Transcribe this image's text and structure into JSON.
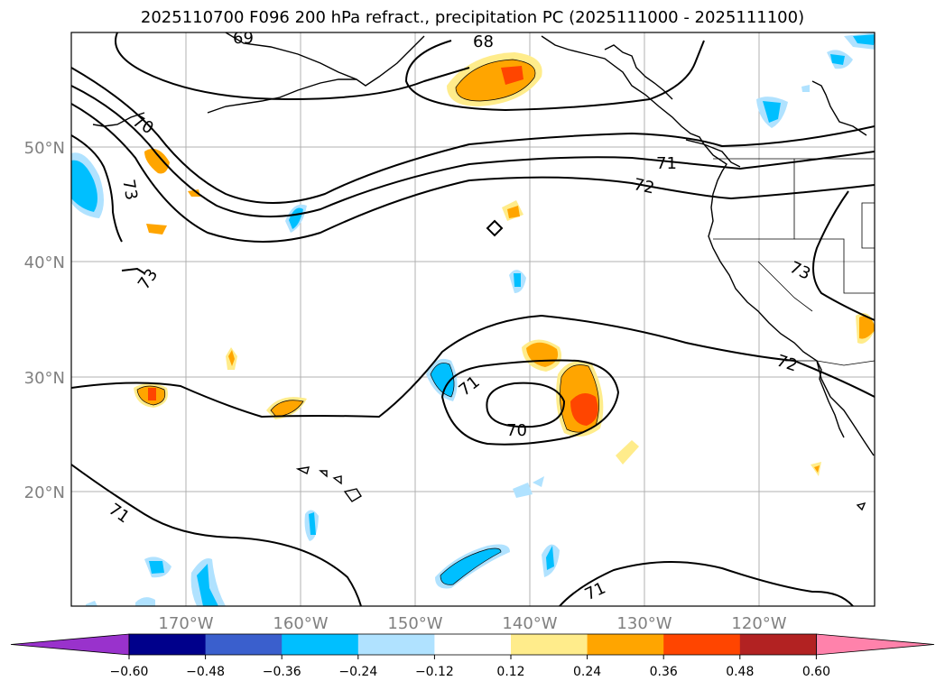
{
  "title": "2025110700 F096 200 hPa refract., precipitation PC (2025111000 - 2025111100)",
  "map": {
    "lon_range": [
      -180,
      -110
    ],
    "lat_range": [
      10,
      60
    ],
    "lon_labels": [
      "170°W",
      "160°W",
      "150°W",
      "140°W",
      "130°W",
      "120°W"
    ],
    "lat_labels": [
      "50°N",
      "40°N",
      "30°N",
      "20°N"
    ],
    "contour_labels": [
      "69",
      "68",
      "70",
      "71",
      "72",
      "73",
      "73",
      "71",
      "71",
      "70",
      "72",
      "73",
      "71",
      "71"
    ]
  },
  "colorbar": {
    "tick_labels": [
      "−0.60",
      "−0.48",
      "−0.36",
      "−0.24",
      "−0.12",
      "0.12",
      "0.24",
      "0.36",
      "0.48",
      "0.60"
    ],
    "colors": [
      "#9932cc",
      "#00008b",
      "#3a5fcd",
      "#00bfff",
      "#b0e2ff",
      "#ffffff",
      "#ffec8b",
      "#ffa500",
      "#ff4500",
      "#b22222",
      "#ff82ab"
    ]
  }
}
